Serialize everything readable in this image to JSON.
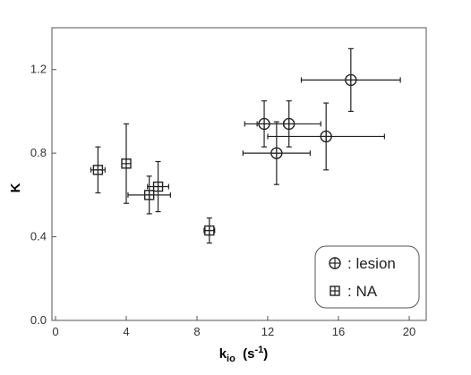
{
  "chart_data": {
    "type": "scatter",
    "title": "",
    "xlabel": {
      "main": "k",
      "sub": "io",
      "unit_open": "  (s",
      "unit_sup": "-1",
      "unit_close": ")"
    },
    "ylabel": "K",
    "xlim": [
      0,
      21
    ],
    "ylim": [
      0,
      1.4
    ],
    "xticks": [
      0,
      4,
      8,
      12,
      16,
      20
    ],
    "xtick_labels": [
      "0",
      "4",
      "8",
      "12",
      "16",
      "20"
    ],
    "yticks": [
      0.0,
      0.4,
      0.8,
      1.2
    ],
    "ytick_labels": [
      "0.0",
      "0.4",
      "0.8",
      "1.2"
    ],
    "grid": false,
    "legend_position": "bottom-right",
    "series": [
      {
        "name": ": lesion",
        "marker": "circle-cross",
        "points": [
          {
            "x": 11.8,
            "y": 0.94,
            "xerr": 1.1,
            "yerr": 0.11
          },
          {
            "x": 13.2,
            "y": 0.94,
            "xerr": 1.8,
            "yerr": 0.11
          },
          {
            "x": 12.5,
            "y": 0.8,
            "xerr": 1.9,
            "yerr": 0.15
          },
          {
            "x": 15.3,
            "y": 0.88,
            "xerr": 3.3,
            "yerr": 0.16
          },
          {
            "x": 16.7,
            "y": 1.15,
            "xerr": 2.8,
            "yerr": 0.15
          }
        ]
      },
      {
        "name": ": NA",
        "marker": "square-cross",
        "points": [
          {
            "x": 2.4,
            "y": 0.72,
            "xerr": 0.4,
            "yerr": 0.11
          },
          {
            "x": 4.0,
            "y": 0.75,
            "xerr": 0.0,
            "yerr": 0.19
          },
          {
            "x": 5.3,
            "y": 0.6,
            "xerr": 1.2,
            "yerr": 0.09
          },
          {
            "x": 5.8,
            "y": 0.64,
            "xerr": 0.6,
            "yerr": 0.12
          },
          {
            "x": 8.7,
            "y": 0.43,
            "xerr": 0.3,
            "yerr": 0.06
          }
        ]
      }
    ]
  }
}
